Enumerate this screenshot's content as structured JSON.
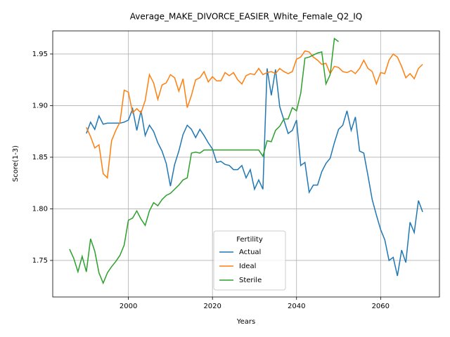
{
  "chart_data": {
    "type": "line",
    "title": "Average_MAKE_DIVORCE_EASIER_White_Female_Q2_IQ",
    "x_label": "Years",
    "y_label": "Score(1-3)",
    "legend_title": "Fertility",
    "legend_position": "lower center",
    "grid": true,
    "x": [
      1986,
      1987,
      1988,
      1989,
      1990,
      1991,
      1992,
      1993,
      1994,
      1995,
      1996,
      1997,
      1998,
      1999,
      2000,
      2001,
      2002,
      2003,
      2004,
      2005,
      2006,
      2007,
      2008,
      2009,
      2010,
      2011,
      2012,
      2013,
      2014,
      2015,
      2016,
      2017,
      2018,
      2019,
      2020,
      2021,
      2022,
      2023,
      2024,
      2025,
      2026,
      2027,
      2028,
      2029,
      2030,
      2031,
      2032,
      2033,
      2034,
      2035,
      2036,
      2037,
      2038,
      2039,
      2040,
      2041,
      2042,
      2043,
      2044,
      2045,
      2046,
      2047,
      2048,
      2049,
      2050,
      2051,
      2052,
      2053,
      2054,
      2055,
      2056,
      2057,
      2058,
      2059,
      2060,
      2061,
      2062,
      2063,
      2064,
      2065,
      2066,
      2067,
      2068,
      2069,
      2070
    ],
    "xlim": [
      1982,
      2074
    ],
    "xticks": [
      2000,
      2020,
      2040,
      2060
    ],
    "ylim": [
      1.7146,
      1.9724
    ],
    "yticks": [
      1.75,
      {
        "value": 1.8,
        "label": "1.80"
      },
      1.85,
      {
        "value": 1.9,
        "label": "1.90"
      },
      1.95
    ],
    "series": [
      {
        "name": "Actual",
        "color": "#1f77b4",
        "values": [
          null,
          null,
          null,
          null,
          1.873,
          1.884,
          1.877,
          1.89,
          1.882,
          1.883,
          1.883,
          1.883,
          1.883,
          1.884,
          1.886,
          1.897,
          1.876,
          1.895,
          1.871,
          1.881,
          1.875,
          1.864,
          1.856,
          1.844,
          1.822,
          1.843,
          1.856,
          1.872,
          1.881,
          1.877,
          1.869,
          1.877,
          1.871,
          1.864,
          1.858,
          1.845,
          1.846,
          1.843,
          1.842,
          1.838,
          1.838,
          1.842,
          1.83,
          1.838,
          1.819,
          1.828,
          1.819,
          1.936,
          1.91,
          1.935,
          1.899,
          1.886,
          1.873,
          1.876,
          1.886,
          1.842,
          1.845,
          1.816,
          1.823,
          1.823,
          1.836,
          1.844,
          1.849,
          1.864,
          1.877,
          1.881,
          1.895,
          1.876,
          1.889,
          1.856,
          1.854,
          1.832,
          1.809,
          1.794,
          1.78,
          1.77,
          1.75,
          1.753,
          1.735,
          1.76,
          1.748,
          1.787,
          1.777,
          1.808,
          1.797
        ]
      },
      {
        "name": "Ideal",
        "color": "#ff7f0e",
        "values": [
          null,
          null,
          null,
          null,
          1.879,
          1.87,
          1.859,
          1.862,
          1.834,
          1.83,
          1.866,
          1.876,
          1.884,
          1.915,
          1.913,
          1.893,
          1.897,
          1.893,
          1.905,
          1.93,
          1.922,
          1.906,
          1.92,
          1.922,
          1.93,
          1.927,
          1.914,
          1.926,
          1.898,
          1.91,
          1.925,
          1.927,
          1.933,
          1.923,
          1.928,
          1.924,
          1.924,
          1.932,
          1.929,
          1.932,
          1.925,
          1.921,
          1.929,
          1.931,
          1.93,
          1.936,
          1.93,
          1.932,
          1.933,
          1.931,
          1.936,
          1.933,
          1.931,
          1.933,
          1.945,
          1.947,
          1.953,
          1.952,
          1.947,
          1.944,
          1.94,
          1.941,
          1.931,
          1.938,
          1.937,
          1.933,
          1.932,
          1.934,
          1.931,
          1.936,
          1.944,
          1.936,
          1.933,
          1.921,
          1.932,
          1.931,
          1.944,
          1.95,
          1.947,
          1.938,
          1.927,
          1.931,
          1.926,
          1.936,
          1.94
        ]
      },
      {
        "name": "Sterile",
        "color": "#2ca02c",
        "values": [
          1.761,
          1.752,
          1.739,
          1.754,
          1.739,
          1.771,
          1.759,
          1.738,
          1.728,
          1.738,
          1.744,
          1.749,
          1.755,
          1.765,
          1.789,
          1.791,
          1.798,
          1.79,
          1.784,
          1.798,
          1.806,
          1.803,
          1.809,
          1.813,
          1.815,
          1.819,
          1.823,
          1.828,
          1.83,
          1.854,
          1.855,
          1.854,
          1.857,
          1.857,
          1.857,
          1.857,
          1.857,
          1.857,
          1.857,
          1.857,
          1.857,
          1.857,
          1.857,
          1.857,
          1.857,
          1.857,
          1.851,
          1.866,
          1.865,
          1.876,
          1.88,
          1.887,
          1.887,
          1.898,
          1.895,
          1.912,
          1.946,
          1.947,
          1.949,
          1.951,
          1.952,
          1.921,
          1.93,
          1.965,
          1.962,
          null,
          null,
          null,
          null,
          null,
          null,
          null,
          null,
          null,
          null,
          null,
          null,
          null,
          null,
          null,
          null,
          null,
          null,
          null,
          null
        ]
      }
    ]
  }
}
